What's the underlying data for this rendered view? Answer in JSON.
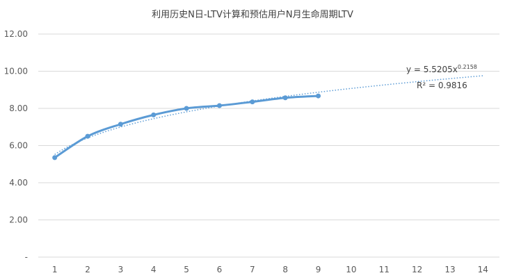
{
  "chart_data": {
    "type": "line",
    "title": "利用历史N日-LTV计算和预估用户N月生命周期LTV",
    "xlabel": "",
    "ylabel": "",
    "x_categories": [
      "1",
      "2",
      "3",
      "4",
      "5",
      "6",
      "7",
      "8",
      "9",
      "10",
      "11",
      "12",
      "13",
      "14"
    ],
    "y_tick_labels": [
      "-",
      "2.00",
      "4.00",
      "6.00",
      "8.00",
      "10.00",
      "12.00"
    ],
    "ylim": [
      0,
      12
    ],
    "grid": true,
    "series": [
      {
        "x": [
          1,
          2,
          3,
          4,
          5,
          6,
          7,
          8,
          9
        ],
        "values": [
          5.35,
          6.5,
          7.15,
          7.65,
          8.0,
          8.15,
          8.35,
          8.57,
          8.67
        ],
        "color": "#5b9bd5",
        "markers": true,
        "smooth": true
      }
    ],
    "trendline": {
      "type": "power",
      "a": 5.5205,
      "b": 0.2158,
      "x_range": [
        1,
        14
      ],
      "color": "#5b9bd5",
      "style": "dotted"
    },
    "annotations": {
      "equation_base": "y = 5.5205x",
      "equation_exponent": "0.2158",
      "r_squared": "R² = 0.9816"
    }
  }
}
